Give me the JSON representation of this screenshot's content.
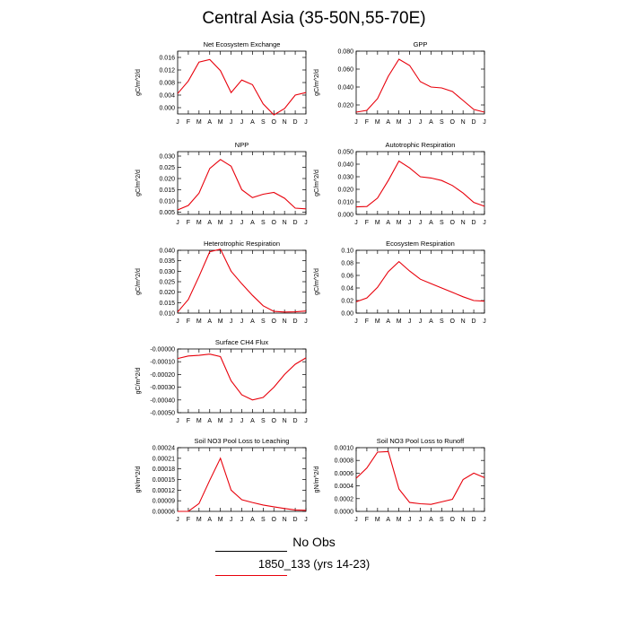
{
  "title": "Central Asia (35-50N,55-70E)",
  "colors": {
    "line": "#e8000b",
    "axis": "#000000",
    "legend_obs": "#000000"
  },
  "legend": {
    "obs_label": "No Obs",
    "model_label": "1850_133 (yrs 14-23)"
  },
  "chart_data": [
    {
      "type": "line",
      "title": "Net Ecosystem Exchange",
      "ylabel": "gC/m^2/d",
      "categories": [
        "J",
        "F",
        "M",
        "A",
        "M",
        "J",
        "J",
        "A",
        "S",
        "O",
        "N",
        "D",
        "J"
      ],
      "ylim": [
        -0.002,
        0.018
      ],
      "yticks": [
        "0.000",
        "0.004",
        "0.008",
        "0.012",
        "0.016"
      ],
      "ytick_values": [
        0.0,
        0.004,
        0.008,
        0.012,
        0.016
      ],
      "values": [
        0.0045,
        0.0085,
        0.0145,
        0.0153,
        0.0118,
        0.0048,
        0.0088,
        0.0073,
        0.0012,
        -0.0023,
        -0.0003,
        0.004,
        0.0048
      ]
    },
    {
      "type": "line",
      "title": "GPP",
      "ylabel": "gC/m^2/d",
      "categories": [
        "J",
        "F",
        "M",
        "A",
        "M",
        "J",
        "J",
        "A",
        "S",
        "O",
        "N",
        "D",
        "J"
      ],
      "ylim": [
        0.01,
        0.08
      ],
      "yticks": [
        "0.020",
        "0.040",
        "0.060",
        "0.080"
      ],
      "ytick_values": [
        0.02,
        0.04,
        0.06,
        0.08
      ],
      "values": [
        0.012,
        0.014,
        0.027,
        0.052,
        0.071,
        0.064,
        0.046,
        0.04,
        0.039,
        0.035,
        0.025,
        0.015,
        0.012
      ]
    },
    {
      "type": "line",
      "title": "NPP",
      "ylabel": "gC/m^2/d",
      "categories": [
        "J",
        "F",
        "M",
        "A",
        "M",
        "J",
        "J",
        "A",
        "S",
        "O",
        "N",
        "D",
        "J"
      ],
      "ylim": [
        0.004,
        0.032
      ],
      "yticks": [
        "0.005",
        "0.010",
        "0.015",
        "0.020",
        "0.025",
        "0.030"
      ],
      "ytick_values": [
        0.005,
        0.01,
        0.015,
        0.02,
        0.025,
        0.03
      ],
      "values": [
        0.006,
        0.008,
        0.0135,
        0.0245,
        0.0285,
        0.0255,
        0.015,
        0.0115,
        0.013,
        0.0138,
        0.0112,
        0.0068,
        0.0065
      ]
    },
    {
      "type": "line",
      "title": "Autotrophic Respiration",
      "ylabel": "gC/m^2/d",
      "categories": [
        "J",
        "F",
        "M",
        "A",
        "M",
        "J",
        "J",
        "A",
        "S",
        "O",
        "N",
        "D",
        "J"
      ],
      "ylim": [
        0.0,
        0.05
      ],
      "yticks": [
        "0.000",
        "0.010",
        "0.020",
        "0.030",
        "0.040",
        "0.050"
      ],
      "ytick_values": [
        0.0,
        0.01,
        0.02,
        0.03,
        0.04,
        0.05
      ],
      "values": [
        0.006,
        0.0063,
        0.013,
        0.027,
        0.0425,
        0.037,
        0.03,
        0.029,
        0.027,
        0.023,
        0.017,
        0.0095,
        0.0065
      ]
    },
    {
      "type": "line",
      "title": "Heterotrophic Respiration",
      "ylabel": "gC/m^2/d",
      "categories": [
        "J",
        "F",
        "M",
        "A",
        "M",
        "J",
        "J",
        "A",
        "S",
        "O",
        "N",
        "D",
        "J"
      ],
      "ylim": [
        0.01,
        0.04
      ],
      "yticks": [
        "0.010",
        "0.015",
        "0.020",
        "0.025",
        "0.030",
        "0.035",
        "0.040"
      ],
      "ytick_values": [
        0.01,
        0.015,
        0.02,
        0.025,
        0.03,
        0.035,
        0.04
      ],
      "values": [
        0.0105,
        0.0165,
        0.0275,
        0.0393,
        0.0405,
        0.03,
        0.024,
        0.0185,
        0.0135,
        0.0108,
        0.0105,
        0.0106,
        0.011
      ]
    },
    {
      "type": "line",
      "title": "Ecosystem Respiration",
      "ylabel": "gC/m^2/d",
      "categories": [
        "J",
        "F",
        "M",
        "A",
        "M",
        "J",
        "J",
        "A",
        "S",
        "O",
        "N",
        "D",
        "J"
      ],
      "ylim": [
        0.0,
        0.1
      ],
      "yticks": [
        "0.00",
        "0.02",
        "0.04",
        "0.06",
        "0.08",
        "0.10"
      ],
      "ytick_values": [
        0.0,
        0.02,
        0.04,
        0.06,
        0.08,
        0.1
      ],
      "values": [
        0.018,
        0.024,
        0.041,
        0.066,
        0.082,
        0.067,
        0.054,
        0.047,
        0.04,
        0.033,
        0.026,
        0.02,
        0.019
      ]
    },
    {
      "type": "line",
      "title": "Surface CH4 Flux",
      "ylabel": "gC/m^2/d",
      "categories": [
        "J",
        "F",
        "M",
        "A",
        "M",
        "J",
        "J",
        "A",
        "S",
        "O",
        "N",
        "D",
        "J"
      ],
      "ylim": [
        -0.0005,
        0.0
      ],
      "yticks": [
        "-0.00000",
        "-0.00010",
        "-0.00020",
        "-0.00030",
        "-0.00040",
        "-0.00050"
      ],
      "ytick_values": [
        0.0,
        -0.0001,
        -0.0002,
        -0.0003,
        -0.0004,
        -0.0005
      ],
      "values": [
        -7.5e-05,
        -5.5e-05,
        -5e-05,
        -4e-05,
        -6e-05,
        -0.00025,
        -0.00036,
        -0.0004,
        -0.00038,
        -0.0003,
        -0.0002,
        -0.00012,
        -7e-05
      ]
    },
    {
      "type": "line",
      "title": "Soil NO3 Pool Loss to Leaching",
      "ylabel": "gN/m^2/d",
      "categories": [
        "J",
        "F",
        "M",
        "A",
        "M",
        "J",
        "J",
        "A",
        "S",
        "O",
        "N",
        "D",
        "J"
      ],
      "ylim": [
        6e-05,
        0.00024
      ],
      "yticks": [
        "0.00006",
        "0.00009",
        "0.00012",
        "0.00015",
        "0.00018",
        "0.00021",
        "0.00024"
      ],
      "ytick_values": [
        6e-05,
        9e-05,
        0.00012,
        0.00015,
        0.00018,
        0.00021,
        0.00024
      ],
      "values": [
        6e-05,
        6e-05,
        8.2e-05,
        0.000148,
        0.00021,
        0.00012,
        9.3e-05,
        8.5e-05,
        7.8e-05,
        7.3e-05,
        6.8e-05,
        6.4e-05,
        6.3e-05
      ]
    },
    {
      "type": "line",
      "title": "Soil NO3 Pool Loss to Runoff",
      "ylabel": "gN/m^2/d",
      "categories": [
        "J",
        "F",
        "M",
        "A",
        "M",
        "J",
        "J",
        "A",
        "S",
        "O",
        "N",
        "D",
        "J"
      ],
      "ylim": [
        0.0,
        0.001
      ],
      "yticks": [
        "0.0000",
        "0.0002",
        "0.0004",
        "0.0006",
        "0.0008",
        "0.0010"
      ],
      "ytick_values": [
        0.0,
        0.0002,
        0.0004,
        0.0006,
        0.0008,
        0.001
      ],
      "values": [
        0.00052,
        0.00068,
        0.00093,
        0.00094,
        0.00035,
        0.00014,
        0.00012,
        0.00011,
        0.00015,
        0.00019,
        0.0005,
        0.0006,
        0.00053
      ]
    }
  ]
}
